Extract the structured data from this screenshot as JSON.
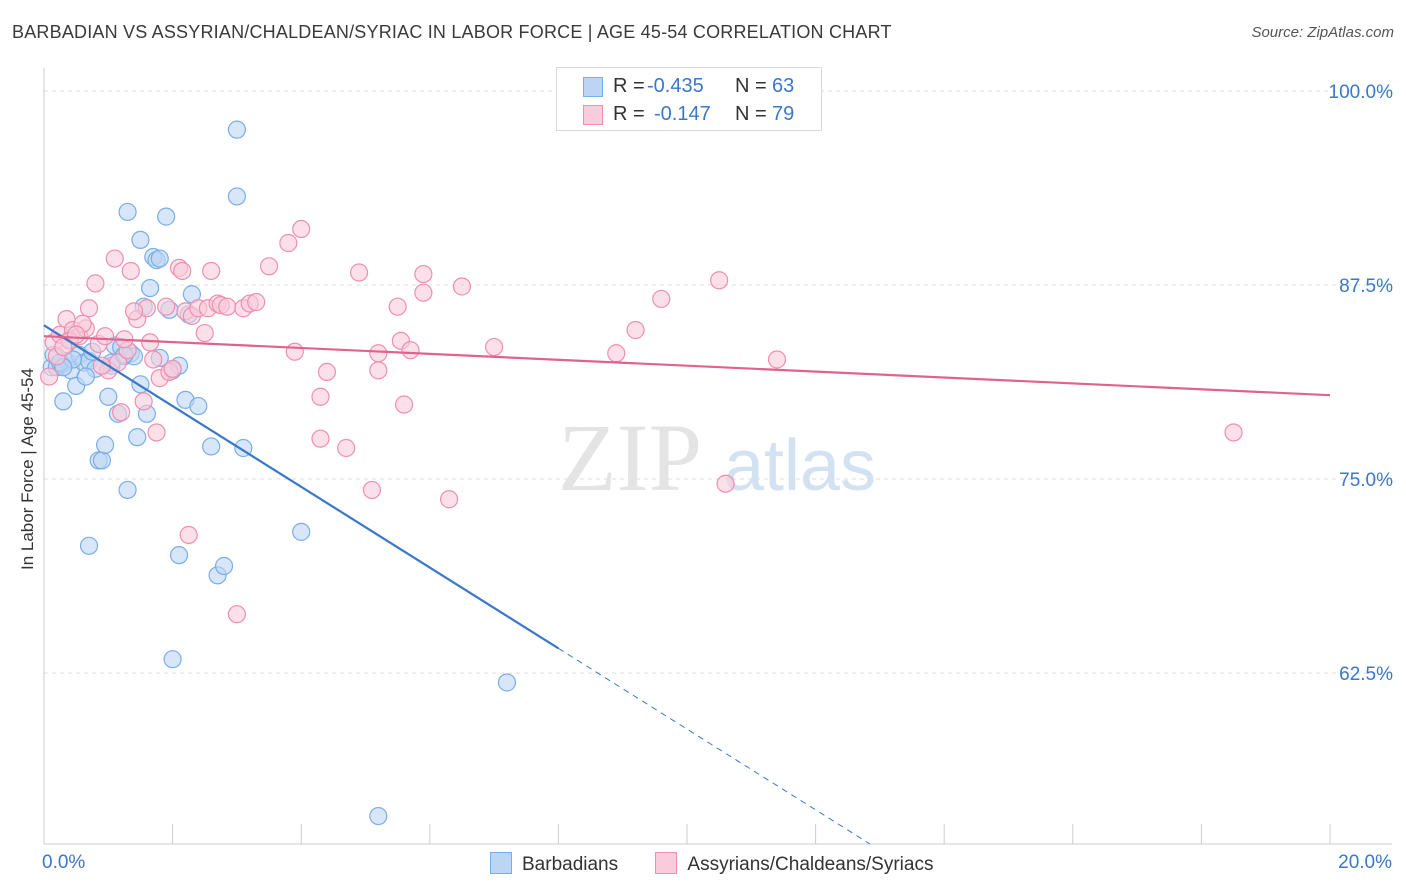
{
  "title": "BARBADIAN VS ASSYRIAN/CHALDEAN/SYRIAC IN LABOR FORCE | AGE 45-54 CORRELATION CHART",
  "source": "Source: ZipAtlas.com",
  "watermark": {
    "zip": "ZIP",
    "atlas": "atlas"
  },
  "stats": [
    {
      "r_label": "R =",
      "r_value": "-0.435",
      "n_label": "N =",
      "n_value": "63",
      "color": "#7aaee8",
      "fill": "#bcd5f4"
    },
    {
      "r_label": "R =",
      "r_value": "-0.147",
      "n_label": "N =",
      "n_value": "79",
      "color": "#ef8faf",
      "fill": "#f9cbdb"
    }
  ],
  "legend": [
    {
      "label": "Barbadians",
      "color": "#7aaee8",
      "fill": "#bcd5f4"
    },
    {
      "label": "Assyrians/Chaldeans/Syriacs",
      "color": "#ef8faf",
      "fill": "#f9cbdb"
    }
  ],
  "x_tick_labels": {
    "left": "0.0%",
    "right": "20.0%"
  },
  "chart_data": {
    "type": "scatter",
    "title": "BARBADIAN VS ASSYRIAN/CHALDEAN/SYRIAC IN LABOR FORCE | AGE 45-54 CORRELATION CHART",
    "xlabel": "",
    "ylabel": "In Labor Force | Age 45-54",
    "xlim": [
      0,
      20
    ],
    "ylim": [
      51.5,
      102.5
    ],
    "y_ticks": [
      {
        "value": 100,
        "label": "100.0%"
      },
      {
        "value": 87.5,
        "label": "87.5%"
      },
      {
        "value": 75,
        "label": "75.0%"
      },
      {
        "value": 62.5,
        "label": "62.5%"
      }
    ],
    "grid": true,
    "legend_position": "bottom",
    "series": [
      {
        "name": "Barbadians",
        "color": "#3a78c8",
        "fill": "#bcd5f4",
        "stroke": "#7aaee8",
        "trend": {
          "x0": 0,
          "y0": 84.9,
          "x1": 8.0,
          "y1": 64.1,
          "dash_to_x": 20.0
        },
        "points": [
          [
            0.12,
            82.2
          ],
          [
            0.2,
            82.2
          ],
          [
            0.28,
            82.4
          ],
          [
            0.35,
            82.6
          ],
          [
            0.42,
            82.0
          ],
          [
            0.3,
            80.0
          ],
          [
            0.4,
            84.0
          ],
          [
            0.5,
            81.0
          ],
          [
            0.55,
            83.0
          ],
          [
            0.62,
            82.5
          ],
          [
            0.7,
            82.6
          ],
          [
            0.75,
            83.2
          ],
          [
            0.8,
            82.1
          ],
          [
            0.85,
            76.2
          ],
          [
            0.9,
            76.2
          ],
          [
            0.95,
            77.2
          ],
          [
            1.0,
            80.3
          ],
          [
            1.05,
            82.3
          ],
          [
            1.1,
            83.6
          ],
          [
            1.15,
            79.2
          ],
          [
            1.2,
            83.5
          ],
          [
            1.25,
            82.9
          ],
          [
            1.3,
            74.3
          ],
          [
            1.35,
            83.1
          ],
          [
            1.4,
            82.9
          ],
          [
            1.45,
            77.7
          ],
          [
            1.5,
            81.1
          ],
          [
            1.55,
            86.1
          ],
          [
            1.6,
            79.2
          ],
          [
            1.65,
            87.3
          ],
          [
            1.7,
            89.3
          ],
          [
            1.75,
            89.1
          ],
          [
            1.8,
            89.2
          ],
          [
            1.3,
            92.2
          ],
          [
            1.9,
            91.9
          ],
          [
            1.5,
            90.4
          ],
          [
            1.8,
            82.8
          ],
          [
            1.95,
            85.9
          ],
          [
            2.0,
            82.0
          ],
          [
            2.1,
            82.3
          ],
          [
            2.2,
            80.1
          ],
          [
            2.25,
            85.6
          ],
          [
            2.3,
            86.9
          ],
          [
            2.4,
            79.7
          ],
          [
            2.6,
            77.1
          ],
          [
            2.7,
            68.8
          ],
          [
            2.8,
            69.4
          ],
          [
            3.0,
            97.5
          ],
          [
            3.0,
            93.2
          ],
          [
            3.1,
            77.0
          ],
          [
            4.0,
            71.6
          ],
          [
            5.2,
            53.3
          ],
          [
            7.2,
            61.9
          ],
          [
            0.7,
            70.7
          ],
          [
            2.1,
            70.1
          ],
          [
            2.0,
            63.4
          ],
          [
            0.15,
            83.0
          ],
          [
            0.25,
            82.5
          ],
          [
            0.45,
            82.7
          ],
          [
            0.65,
            81.6
          ],
          [
            0.3,
            82.2
          ],
          [
            1.05,
            82.5
          ],
          [
            1.25,
            83.0
          ]
        ]
      },
      {
        "name": "Assyrians/Chaldeans/Syriacs",
        "color": "#e0638c",
        "fill": "#f9cbdb",
        "stroke": "#ef8faf",
        "trend": {
          "x0": 0,
          "y0": 84.2,
          "x1": 20.0,
          "y1": 80.4
        },
        "points": [
          [
            0.08,
            81.6
          ],
          [
            0.15,
            83.8
          ],
          [
            0.25,
            84.3
          ],
          [
            0.35,
            85.3
          ],
          [
            0.45,
            84.6
          ],
          [
            0.55,
            84.2
          ],
          [
            0.65,
            84.7
          ],
          [
            0.7,
            86.0
          ],
          [
            0.8,
            87.6
          ],
          [
            0.85,
            83.7
          ],
          [
            0.95,
            84.2
          ],
          [
            1.0,
            82.0
          ],
          [
            1.1,
            89.2
          ],
          [
            1.15,
            82.5
          ],
          [
            1.2,
            79.3
          ],
          [
            1.3,
            83.3
          ],
          [
            1.35,
            88.4
          ],
          [
            1.45,
            85.3
          ],
          [
            1.55,
            80.0
          ],
          [
            1.6,
            86.0
          ],
          [
            1.65,
            83.8
          ],
          [
            1.7,
            82.7
          ],
          [
            1.75,
            78.0
          ],
          [
            1.8,
            81.5
          ],
          [
            1.9,
            86.1
          ],
          [
            1.95,
            81.9
          ],
          [
            2.0,
            82.1
          ],
          [
            2.1,
            88.6
          ],
          [
            2.15,
            88.4
          ],
          [
            2.2,
            85.8
          ],
          [
            2.25,
            71.4
          ],
          [
            2.3,
            85.5
          ],
          [
            2.4,
            86.0
          ],
          [
            2.5,
            84.4
          ],
          [
            2.55,
            86.0
          ],
          [
            2.6,
            88.4
          ],
          [
            2.7,
            86.3
          ],
          [
            2.75,
            86.2
          ],
          [
            2.85,
            86.1
          ],
          [
            3.0,
            66.3
          ],
          [
            3.1,
            86.0
          ],
          [
            3.2,
            86.3
          ],
          [
            3.3,
            86.4
          ],
          [
            3.5,
            88.7
          ],
          [
            3.8,
            90.2
          ],
          [
            3.9,
            83.2
          ],
          [
            4.0,
            91.1
          ],
          [
            4.3,
            77.6
          ],
          [
            4.3,
            80.3
          ],
          [
            4.4,
            81.9
          ],
          [
            4.7,
            77.0
          ],
          [
            4.9,
            88.3
          ],
          [
            5.1,
            74.3
          ],
          [
            5.2,
            82.0
          ],
          [
            5.2,
            83.1
          ],
          [
            5.5,
            86.1
          ],
          [
            5.55,
            83.9
          ],
          [
            5.6,
            79.8
          ],
          [
            5.7,
            83.3
          ],
          [
            5.9,
            87.0
          ],
          [
            5.9,
            88.2
          ],
          [
            6.3,
            73.7
          ],
          [
            6.5,
            87.4
          ],
          [
            7.0,
            83.5
          ],
          [
            8.9,
            83.1
          ],
          [
            9.2,
            84.6
          ],
          [
            9.6,
            86.6
          ],
          [
            10.5,
            87.8
          ],
          [
            10.6,
            74.7
          ],
          [
            11.4,
            82.7
          ],
          [
            18.5,
            78.0
          ],
          [
            0.2,
            82.9
          ],
          [
            0.4,
            83.9
          ],
          [
            0.6,
            85.0
          ],
          [
            0.9,
            82.3
          ],
          [
            1.25,
            84.0
          ],
          [
            1.4,
            85.8
          ],
          [
            0.5,
            84.3
          ],
          [
            0.3,
            83.5
          ]
        ]
      }
    ]
  }
}
